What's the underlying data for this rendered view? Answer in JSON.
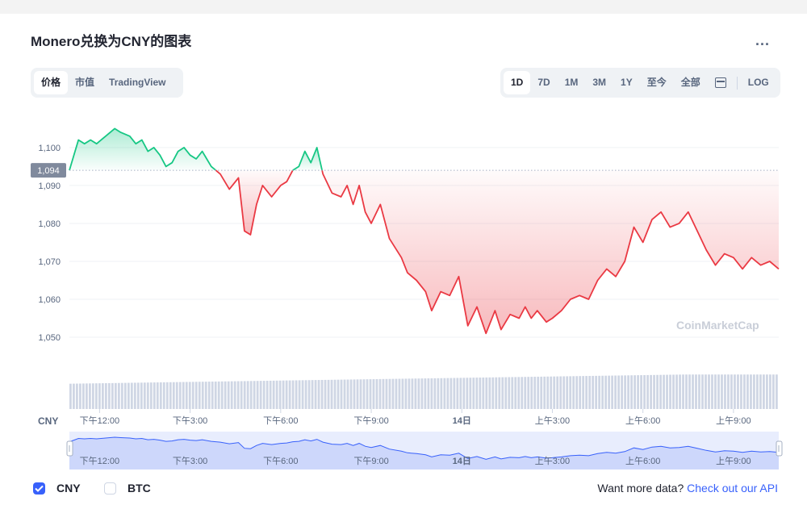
{
  "header": {
    "title": "Monero兑换为CNY的图表",
    "more": "..."
  },
  "toggle": {
    "items": [
      {
        "label": "价格",
        "active": true
      },
      {
        "label": "市值",
        "active": false
      },
      {
        "label": "TradingView",
        "active": false
      }
    ]
  },
  "range": {
    "items": [
      {
        "label": "1D",
        "active": true
      },
      {
        "label": "7D"
      },
      {
        "label": "1M"
      },
      {
        "label": "3M"
      },
      {
        "label": "1Y"
      },
      {
        "label": "至今"
      },
      {
        "label": "全部"
      }
    ],
    "log_label": "LOG",
    "calendar_icon": "calendar-icon"
  },
  "legend": {
    "cny": "CNY",
    "btc": "BTC"
  },
  "api": {
    "text": "Want more data? ",
    "link": "Check out our API"
  },
  "watermark": "CoinMarketCap",
  "colors": {
    "up": "#16c784",
    "down": "#ea3943",
    "accent": "#3861fb"
  },
  "chart_data": {
    "type": "line",
    "y_unit": "CNY",
    "ylim": [
      1040,
      1107
    ],
    "y_ticks": [
      "1,100",
      "1,090",
      "1,080",
      "1,070",
      "1,060",
      "1,050"
    ],
    "y_tick_values": [
      1100,
      1090,
      1080,
      1070,
      1060,
      1050
    ],
    "baseline": 1094,
    "baseline_label": "1,094",
    "x_tick_labels": [
      "下午12:00",
      "下午3:00",
      "下午6:00",
      "下午9:00",
      "14日",
      "上午3:00",
      "上午6:00",
      "上午9:00"
    ],
    "x_tick_hours": [
      1.0,
      4.0,
      7.0,
      10.0,
      13.0,
      16.0,
      19.0,
      22.0
    ],
    "x_range_hours": [
      0,
      23.5
    ],
    "series": [
      {
        "x": [
          0,
          0.15,
          0.3,
          0.5,
          0.7,
          0.9,
          1.2,
          1.5,
          1.7,
          2.0,
          2.2,
          2.4,
          2.6,
          2.8,
          3.0,
          3.2,
          3.4,
          3.6,
          3.8,
          4.0,
          4.2,
          4.4,
          4.7,
          5.0,
          5.3,
          5.6,
          5.8,
          6.0,
          6.2,
          6.4,
          6.7,
          7.0,
          7.2,
          7.4,
          7.6,
          7.8,
          8.0,
          8.2,
          8.4,
          8.7,
          9.0,
          9.2,
          9.4,
          9.6,
          9.8,
          10.0,
          10.3,
          10.6,
          11.0,
          11.2,
          11.5,
          11.8,
          12.0,
          12.3,
          12.6,
          12.9,
          13.2,
          13.5,
          13.8,
          14.1,
          14.3,
          14.6,
          14.9,
          15.1,
          15.3,
          15.5,
          15.8,
          16.0,
          16.3,
          16.6,
          16.9,
          17.2,
          17.5,
          17.8,
          18.1,
          18.4,
          18.7,
          19.0,
          19.3,
          19.6,
          19.9,
          20.2,
          20.5,
          20.8,
          21.1,
          21.4,
          21.7,
          22.0,
          22.3,
          22.6,
          22.9,
          23.2,
          23.5
        ],
        "y": [
          1094,
          1098,
          1102,
          1101,
          1102,
          1101,
          1103,
          1105,
          1104,
          1103,
          1101,
          1102,
          1099,
          1100,
          1098,
          1095,
          1096,
          1099,
          1100,
          1098,
          1097,
          1099,
          1095,
          1093,
          1089,
          1092,
          1078,
          1077,
          1085,
          1090,
          1087,
          1090,
          1091,
          1094,
          1095,
          1099,
          1096,
          1100,
          1093,
          1088,
          1087,
          1090,
          1085,
          1090,
          1083,
          1080,
          1085,
          1076,
          1071,
          1067,
          1065,
          1062,
          1057,
          1062,
          1061,
          1066,
          1053,
          1058,
          1051,
          1057,
          1052,
          1056,
          1055,
          1058,
          1055,
          1057,
          1054,
          1055,
          1057,
          1060,
          1061,
          1060,
          1065,
          1068,
          1066,
          1070,
          1079,
          1075,
          1081,
          1083,
          1079,
          1080,
          1083,
          1078,
          1073,
          1069,
          1072,
          1071,
          1068,
          1071,
          1069,
          1070,
          1068
        ]
      }
    ],
    "volume_level": [
      0.55,
      0.75
    ],
    "navigator_labels": [
      "下午12:00",
      "下午3:00",
      "下午6:00",
      "下午9:00",
      "14日",
      "上午3:00",
      "上午6:00",
      "上午9:00"
    ]
  }
}
